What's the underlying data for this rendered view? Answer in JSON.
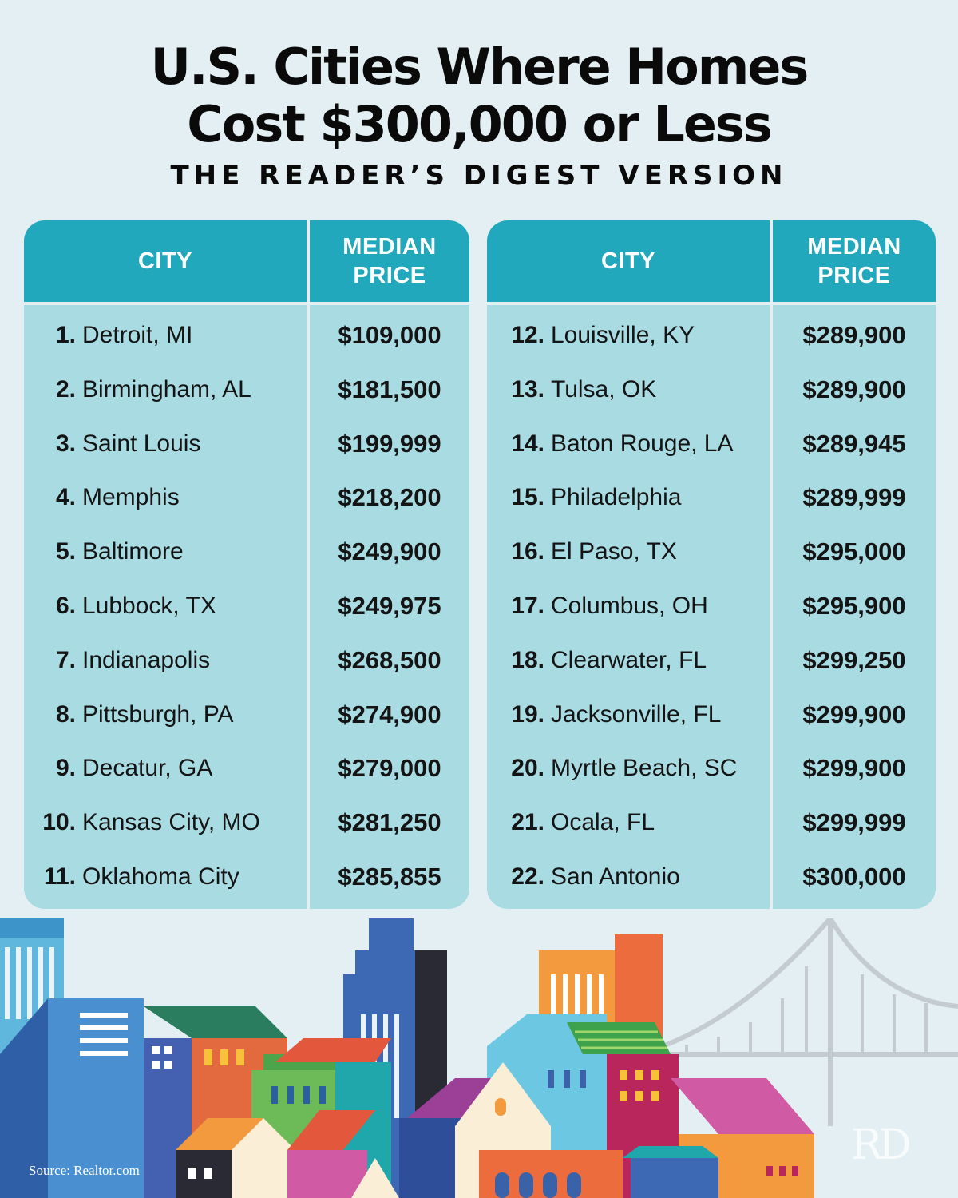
{
  "title": {
    "line1": "U.S. Cities Where Homes",
    "line2": "Cost $300,000 or Less",
    "subtitle": "THE READER’S DIGEST VERSION"
  },
  "headers": {
    "city": "CITY",
    "price_line1": "MEDIAN",
    "price_line2": "PRICE"
  },
  "left_table": [
    {
      "rank": "1.",
      "city": "Detroit, MI",
      "price": "$109,000"
    },
    {
      "rank": "2.",
      "city": "Birmingham, AL",
      "price": "$181,500"
    },
    {
      "rank": "3.",
      "city": "Saint Louis",
      "price": "$199,999"
    },
    {
      "rank": "4.",
      "city": "Memphis",
      "price": "$218,200"
    },
    {
      "rank": "5.",
      "city": "Baltimore",
      "price": "$249,900"
    },
    {
      "rank": "6.",
      "city": "Lubbock, TX",
      "price": "$249,975"
    },
    {
      "rank": "7.",
      "city": "Indianapolis",
      "price": "$268,500"
    },
    {
      "rank": "8.",
      "city": "Pittsburgh, PA",
      "price": "$274,900"
    },
    {
      "rank": "9.",
      "city": "Decatur, GA",
      "price": "$279,000"
    },
    {
      "rank": "10.",
      "city": "Kansas City, MO",
      "price": "$281,250"
    },
    {
      "rank": "11.",
      "city": "Oklahoma City",
      "price": "$285,855"
    }
  ],
  "right_table": [
    {
      "rank": "12.",
      "city": "Louisville, KY",
      "price": "$289,900"
    },
    {
      "rank": "13.",
      "city": "Tulsa, OK",
      "price": "$289,900"
    },
    {
      "rank": "14.",
      "city": "Baton Rouge, LA",
      "price": "$289,945"
    },
    {
      "rank": "15.",
      "city": "Philadelphia",
      "price": "$289,999"
    },
    {
      "rank": "16.",
      "city": "El Paso, TX",
      "price": "$295,000"
    },
    {
      "rank": "17.",
      "city": "Columbus, OH",
      "price": "$295,900"
    },
    {
      "rank": "18.",
      "city": "Clearwater, FL",
      "price": "$299,250"
    },
    {
      "rank": "19.",
      "city": "Jacksonville, FL",
      "price": "$299,900"
    },
    {
      "rank": "20.",
      "city": "Myrtle Beach, SC",
      "price": "$299,900"
    },
    {
      "rank": "21.",
      "city": "Ocala, FL",
      "price": "$299,999"
    },
    {
      "rank": "22.",
      "city": "San Antonio",
      "price": "$300,000"
    }
  ],
  "source": "Source: Realtor.com",
  "logo": "RD"
}
